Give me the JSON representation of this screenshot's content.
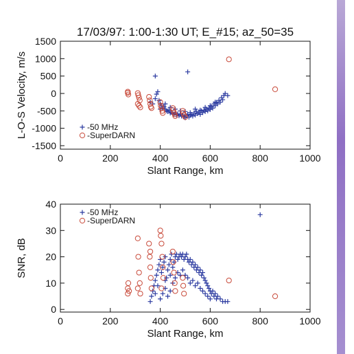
{
  "chart_data": {
    "title": "17/03/97: 1:00-1:30 UT; E_#15; az_50=35",
    "colors": {
      "mhz50": "#2b3aa0",
      "superdarn": "#c84a3a"
    },
    "panels": [
      {
        "id": "velocity",
        "type": "scatter",
        "xlabel": "Slant Range, km",
        "ylabel": "L-O-S Velocity, m/s",
        "xlim": [
          0,
          1000
        ],
        "ylim": [
          -1600,
          1500
        ],
        "xticks": [
          "0",
          "200",
          "400",
          "600",
          "800",
          "1000"
        ],
        "xtick_values": [
          0,
          200,
          400,
          600,
          800,
          1000
        ],
        "yticks": [
          "1500",
          "1000",
          "500",
          "0",
          "-500",
          "-1000",
          "-1500"
        ],
        "ytick_values": [
          1500,
          1000,
          500,
          0,
          -500,
          -1000,
          -1500
        ],
        "legend": {
          "placement": "bottom-left",
          "entries": [
            "-50 MHz",
            "-SuperDARN"
          ]
        },
        "series": [
          {
            "name": "-50 MHz",
            "marker": "plus",
            "color_key": "mhz50",
            "points": [
              [
                380,
                500
              ],
              [
                510,
                620
              ],
              [
                385,
                -20
              ],
              [
                390,
                50
              ],
              [
                395,
                -200
              ],
              [
                400,
                -300
              ],
              [
                405,
                -350
              ],
              [
                410,
                -420
              ],
              [
                415,
                -380
              ],
              [
                420,
                -450
              ],
              [
                425,
                -500
              ],
              [
                430,
                -520
              ],
              [
                435,
                -480
              ],
              [
                440,
                -560
              ],
              [
                445,
                -540
              ],
              [
                450,
                -580
              ],
              [
                455,
                -600
              ],
              [
                460,
                -560
              ],
              [
                465,
                -620
              ],
              [
                470,
                -590
              ],
              [
                475,
                -640
              ],
              [
                480,
                -600
              ],
              [
                485,
                -650
              ],
              [
                490,
                -620
              ],
              [
                495,
                -660
              ],
              [
                500,
                -700
              ],
              [
                505,
                -640
              ],
              [
                510,
                -600
              ],
              [
                515,
                -680
              ],
              [
                520,
                -620
              ],
              [
                525,
                -600
              ],
              [
                530,
                -650
              ],
              [
                535,
                -560
              ],
              [
                540,
                -620
              ],
              [
                545,
                -520
              ],
              [
                550,
                -580
              ],
              [
                555,
                -540
              ],
              [
                560,
                -600
              ],
              [
                565,
                -500
              ],
              [
                570,
                -550
              ],
              [
                575,
                -480
              ],
              [
                580,
                -520
              ],
              [
                585,
                -450
              ],
              [
                590,
                -500
              ],
              [
                595,
                -420
              ],
              [
                600,
                -460
              ],
              [
                605,
                -380
              ],
              [
                610,
                -420
              ],
              [
                615,
                -300
              ],
              [
                620,
                -350
              ],
              [
                625,
                -260
              ],
              [
                630,
                -300
              ],
              [
                635,
                -200
              ],
              [
                640,
                -250
              ],
              [
                645,
                -120
              ],
              [
                650,
                -180
              ],
              [
                655,
                -60
              ],
              [
                660,
                0
              ],
              [
                670,
                -60
              ],
              [
                400,
                -450
              ],
              [
                420,
                -300
              ],
              [
                440,
                -400
              ],
              [
                460,
                -450
              ],
              [
                480,
                -500
              ],
              [
                500,
                -520
              ],
              [
                520,
                -550
              ],
              [
                540,
                -450
              ],
              [
                560,
                -480
              ],
              [
                580,
                -400
              ],
              [
                600,
                -350
              ],
              [
                620,
                -250
              ],
              [
                380,
                -150
              ],
              [
                370,
                -300
              ],
              [
                360,
                -250
              ]
            ]
          },
          {
            "name": "-SuperDARN",
            "marker": "circle",
            "color_key": "superdarn",
            "points": [
              [
                675,
                980
              ],
              [
                860,
                120
              ],
              [
                270,
                50
              ],
              [
                270,
                20
              ],
              [
                272,
                -30
              ],
              [
                310,
                10
              ],
              [
                312,
                -50
              ],
              [
                315,
                -120
              ],
              [
                318,
                -200
              ],
              [
                310,
                -300
              ],
              [
                315,
                -350
              ],
              [
                320,
                -400
              ],
              [
                355,
                -100
              ],
              [
                358,
                -200
              ],
              [
                360,
                -300
              ],
              [
                362,
                -380
              ],
              [
                365,
                -420
              ],
              [
                400,
                -250
              ],
              [
                402,
                -350
              ],
              [
                405,
                -420
              ],
              [
                408,
                -500
              ],
              [
                410,
                -560
              ],
              [
                450,
                -420
              ],
              [
                452,
                -480
              ],
              [
                455,
                -550
              ],
              [
                458,
                -600
              ],
              [
                460,
                -650
              ],
              [
                490,
                -500
              ],
              [
                492,
                -560
              ],
              [
                495,
                -620
              ],
              [
                500,
                -680
              ]
            ]
          }
        ]
      },
      {
        "id": "snr",
        "type": "scatter",
        "xlabel": "Slant Range, km",
        "ylabel": "SNR, dB",
        "xlim": [
          0,
          1000
        ],
        "ylim": [
          -1,
          40
        ],
        "xticks": [
          "0",
          "200",
          "400",
          "600",
          "800",
          "1000"
        ],
        "xtick_values": [
          0,
          200,
          400,
          600,
          800,
          1000
        ],
        "yticks": [
          "40",
          "30",
          "20",
          "10",
          "0"
        ],
        "ytick_values": [
          40,
          30,
          20,
          10,
          0
        ],
        "legend": {
          "placement": "top-left",
          "entries": [
            "-50 MHz",
            "-SuperDARN"
          ]
        },
        "series": [
          {
            "name": "-50 MHz",
            "marker": "plus",
            "color_key": "mhz50",
            "points": [
              [
                800,
                36
              ],
              [
                360,
                3
              ],
              [
                365,
                5
              ],
              [
                370,
                7
              ],
              [
                375,
                9
              ],
              [
                380,
                11
              ],
              [
                385,
                13
              ],
              [
                390,
                15
              ],
              [
                395,
                17
              ],
              [
                400,
                19
              ],
              [
                405,
                14
              ],
              [
                410,
                16
              ],
              [
                415,
                18
              ],
              [
                420,
                20
              ],
              [
                425,
                12
              ],
              [
                430,
                15
              ],
              [
                435,
                17
              ],
              [
                440,
                19
              ],
              [
                445,
                21
              ],
              [
                450,
                16
              ],
              [
                455,
                18
              ],
              [
                460,
                20
              ],
              [
                465,
                21
              ],
              [
                470,
                19
              ],
              [
                475,
                20
              ],
              [
                480,
                21
              ],
              [
                485,
                20
              ],
              [
                490,
                21
              ],
              [
                495,
                19
              ],
              [
                500,
                20
              ],
              [
                505,
                21
              ],
              [
                510,
                19
              ],
              [
                515,
                18
              ],
              [
                520,
                19
              ],
              [
                525,
                17
              ],
              [
                530,
                18
              ],
              [
                535,
                16
              ],
              [
                540,
                17
              ],
              [
                545,
                15
              ],
              [
                550,
                16
              ],
              [
                555,
                14
              ],
              [
                560,
                15
              ],
              [
                565,
                13
              ],
              [
                570,
                14
              ],
              [
                575,
                12
              ],
              [
                580,
                11
              ],
              [
                585,
                10
              ],
              [
                590,
                9
              ],
              [
                595,
                8
              ],
              [
                600,
                7
              ],
              [
                605,
                6
              ],
              [
                610,
                7
              ],
              [
                615,
                5
              ],
              [
                620,
                6
              ],
              [
                625,
                4
              ],
              [
                630,
                5
              ],
              [
                640,
                4
              ],
              [
                650,
                3
              ],
              [
                660,
                3
              ],
              [
                670,
                3
              ],
              [
                400,
                4
              ],
              [
                410,
                6
              ],
              [
                420,
                8
              ],
              [
                430,
                5
              ],
              [
                440,
                7
              ],
              [
                450,
                10
              ],
              [
                460,
                12
              ],
              [
                470,
                14
              ],
              [
                480,
                13
              ],
              [
                490,
                15
              ],
              [
                500,
                13
              ],
              [
                510,
                12
              ],
              [
                520,
                10
              ],
              [
                530,
                11
              ],
              [
                540,
                9
              ],
              [
                550,
                10
              ],
              [
                560,
                8
              ],
              [
                570,
                7
              ],
              [
                580,
                6
              ],
              [
                590,
                5
              ],
              [
                600,
                4
              ],
              [
                380,
                6
              ],
              [
                390,
                9
              ],
              [
                420,
                11
              ],
              [
                440,
                13
              ]
            ]
          },
          {
            "name": "-SuperDARN",
            "marker": "circle",
            "color_key": "superdarn",
            "points": [
              [
                675,
                11
              ],
              [
                860,
                5
              ],
              [
                270,
                6
              ],
              [
                270,
                8
              ],
              [
                272,
                10
              ],
              [
                275,
                7
              ],
              [
                310,
                27
              ],
              [
                312,
                20
              ],
              [
                315,
                14
              ],
              [
                318,
                10
              ],
              [
                320,
                6
              ],
              [
                310,
                8
              ],
              [
                355,
                25
              ],
              [
                358,
                20
              ],
              [
                360,
                16
              ],
              [
                362,
                12
              ],
              [
                365,
                8
              ],
              [
                360,
                22
              ],
              [
                400,
                30
              ],
              [
                402,
                28
              ],
              [
                405,
                25
              ],
              [
                408,
                20
              ],
              [
                410,
                16
              ],
              [
                412,
                12
              ],
              [
                405,
                8
              ],
              [
                450,
                22
              ],
              [
                452,
                18
              ],
              [
                455,
                14
              ],
              [
                458,
                10
              ],
              [
                460,
                7
              ],
              [
                490,
                12
              ],
              [
                492,
                9
              ],
              [
                495,
                6
              ]
            ]
          }
        ]
      }
    ]
  }
}
